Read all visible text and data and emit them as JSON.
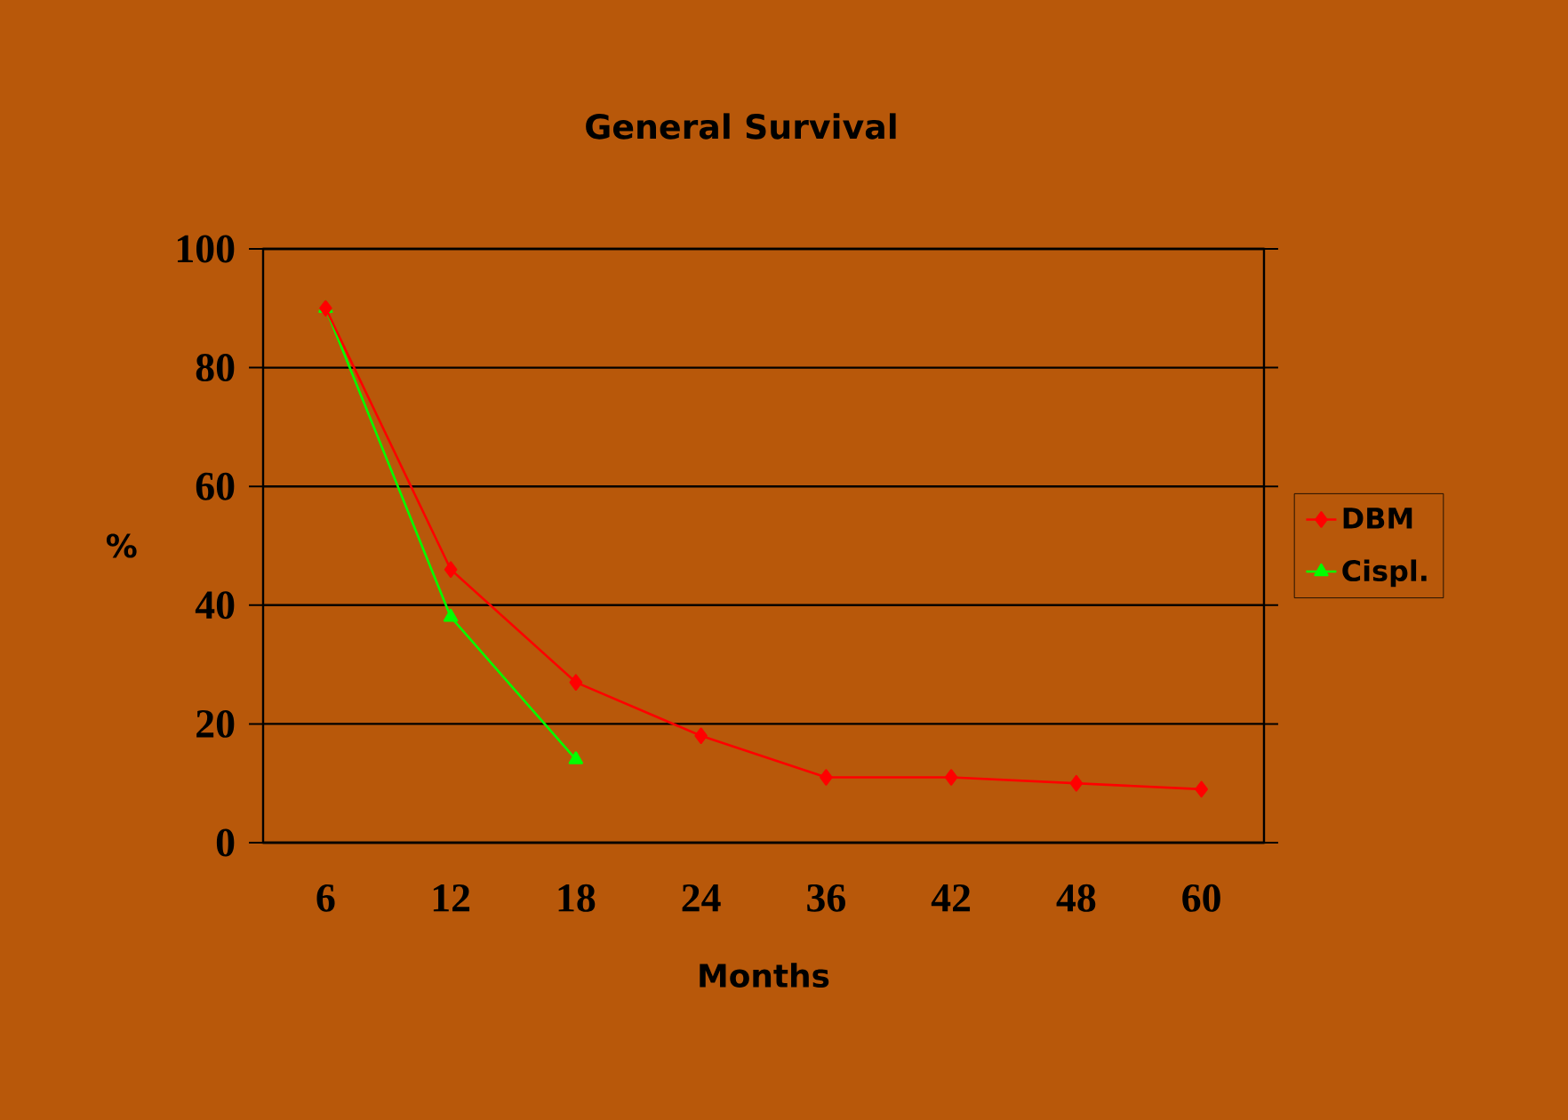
{
  "chart_data": {
    "type": "line",
    "title": "General Survival",
    "xlabel": "Months",
    "ylabel": "%",
    "categories": [
      "6",
      "12",
      "18",
      "24",
      "36",
      "42",
      "48",
      "60"
    ],
    "series": [
      {
        "name": "DBM",
        "color": "#ff0000",
        "marker": "diamond",
        "values": [
          90,
          46,
          27,
          18,
          11,
          11,
          10,
          9
        ]
      },
      {
        "name": "Cispl.",
        "color": "#00ff00",
        "marker": "triangle",
        "values": [
          90,
          38,
          14,
          null,
          null,
          null,
          null,
          null
        ]
      }
    ],
    "ylim": [
      0,
      100
    ],
    "yticks": [
      0,
      20,
      40,
      60,
      80,
      100
    ],
    "grid": "y",
    "legend": "right"
  }
}
